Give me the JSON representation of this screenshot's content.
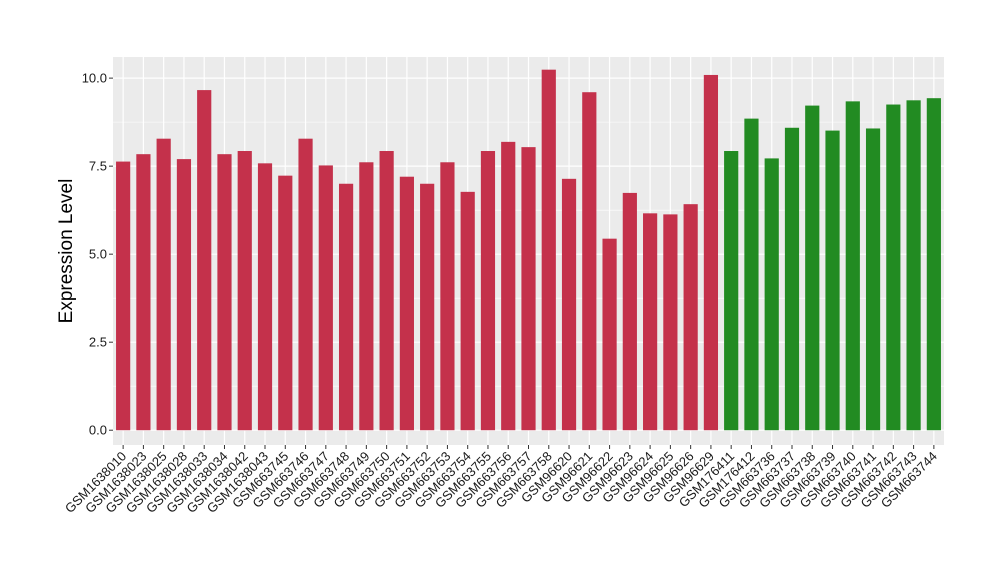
{
  "chart_data": {
    "type": "bar",
    "title": "",
    "xlabel": "",
    "ylabel": "Expression Level",
    "ylim": [
      -0.42,
      10.6
    ],
    "yticks": [
      0.0,
      2.5,
      5.0,
      7.5,
      10.0
    ],
    "ytick_labels": [
      "0.0",
      "2.5",
      "5.0",
      "7.5",
      "10.0"
    ],
    "grid": true,
    "legend": "none",
    "colors": {
      "group_1": "#c4314b",
      "group_2": "#228b22",
      "panel": "#ebebeb",
      "grid": "#ffffff"
    },
    "categories": [
      "GSM1638010",
      "GSM1638023",
      "GSM1638025",
      "GSM1638028",
      "GSM1638033",
      "GSM1638034",
      "GSM1638042",
      "GSM1638043",
      "GSM663745",
      "GSM663746",
      "GSM663747",
      "GSM663748",
      "GSM663749",
      "GSM663750",
      "GSM663751",
      "GSM663752",
      "GSM663753",
      "GSM663754",
      "GSM663755",
      "GSM663756",
      "GSM663757",
      "GSM663758",
      "GSM96620",
      "GSM96621",
      "GSM96622",
      "GSM96623",
      "GSM96624",
      "GSM96625",
      "GSM96626",
      "GSM96629",
      "GSM176411",
      "GSM176412",
      "GSM663736",
      "GSM663737",
      "GSM663738",
      "GSM663739",
      "GSM663740",
      "GSM663741",
      "GSM663742",
      "GSM663743",
      "GSM663744"
    ],
    "values": [
      7.63,
      7.84,
      8.28,
      7.7,
      9.66,
      7.84,
      7.93,
      7.58,
      7.23,
      8.28,
      7.52,
      7.0,
      7.61,
      7.93,
      7.2,
      7.0,
      7.61,
      6.77,
      7.93,
      8.19,
      8.04,
      10.24,
      7.14,
      9.6,
      5.44,
      6.74,
      6.16,
      6.13,
      6.42,
      10.09,
      7.93,
      8.85,
      7.72,
      8.59,
      9.22,
      8.51,
      9.34,
      8.57,
      9.25,
      9.37,
      9.43
    ],
    "group": [
      1,
      1,
      1,
      1,
      1,
      1,
      1,
      1,
      1,
      1,
      1,
      1,
      1,
      1,
      1,
      1,
      1,
      1,
      1,
      1,
      1,
      1,
      1,
      1,
      1,
      1,
      1,
      1,
      1,
      1,
      2,
      2,
      2,
      2,
      2,
      2,
      2,
      2,
      2,
      2,
      2
    ]
  }
}
